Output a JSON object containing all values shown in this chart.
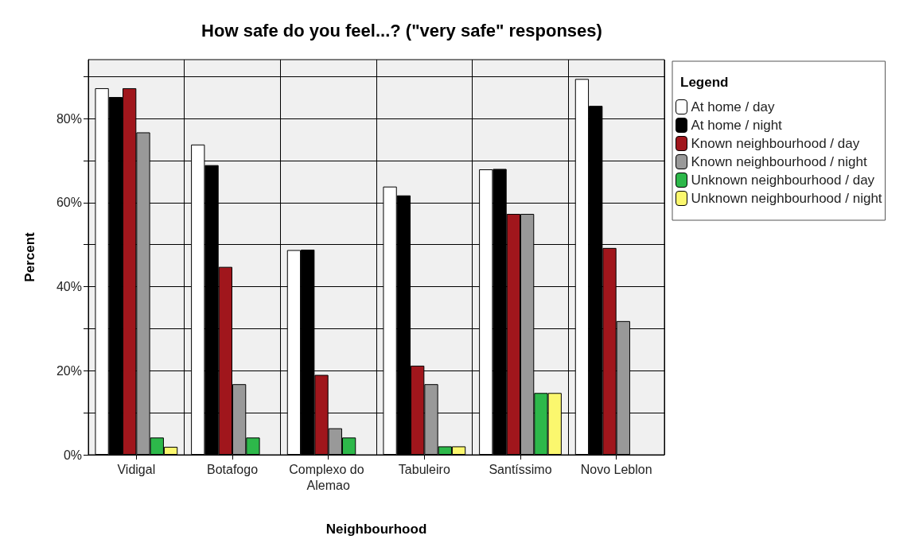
{
  "chart_data": {
    "type": "bar",
    "title": "How safe do you feel...? (\"very safe\" responses)",
    "xlabel": "Neighbourhood",
    "ylabel": "Percent",
    "legend_title": "Legend",
    "categories": [
      "Vidigal",
      "Botafogo",
      "Complexo do Alemao",
      "Tabuleiro",
      "Santíssimo",
      "Novo Leblon"
    ],
    "series": [
      {
        "name": "At home / day",
        "color": "#ffffff",
        "values": [
          87.2,
          73.8,
          48.7,
          63.8,
          67.9,
          89.4
        ]
      },
      {
        "name": "At home / night",
        "color": "#000000",
        "values": [
          85.1,
          68.9,
          48.8,
          61.7,
          68.0,
          83.0
        ]
      },
      {
        "name": "Known neighbourhood / day",
        "color": "#a0161c",
        "values": [
          87.2,
          44.7,
          19.0,
          21.2,
          57.3,
          49.2
        ]
      },
      {
        "name": "Known neighbourhood / night",
        "color": "#999999",
        "values": [
          76.7,
          16.8,
          6.3,
          16.8,
          57.3,
          31.8
        ]
      },
      {
        "name": "Unknown neighbourhood / day",
        "color": "#2db84a",
        "values": [
          4.1,
          4.1,
          4.1,
          2.0,
          14.7,
          0
        ]
      },
      {
        "name": "Unknown neighbourhood / night",
        "color": "#fbf76e",
        "values": [
          1.9,
          0,
          0,
          2.0,
          14.7,
          0
        ]
      }
    ],
    "ylim": [
      0,
      94
    ],
    "yticks": [
      {
        "value": 0,
        "label": "0%"
      },
      {
        "value": 10,
        "label": null
      },
      {
        "value": 20,
        "label": "20%"
      },
      {
        "value": 30,
        "label": null
      },
      {
        "value": 40,
        "label": "40%"
      },
      {
        "value": 50,
        "label": null
      },
      {
        "value": 60,
        "label": "60%"
      },
      {
        "value": 70,
        "label": null
      },
      {
        "value": 80,
        "label": "80%"
      },
      {
        "value": 90,
        "label": null
      }
    ],
    "grid": true,
    "legend": "right"
  }
}
